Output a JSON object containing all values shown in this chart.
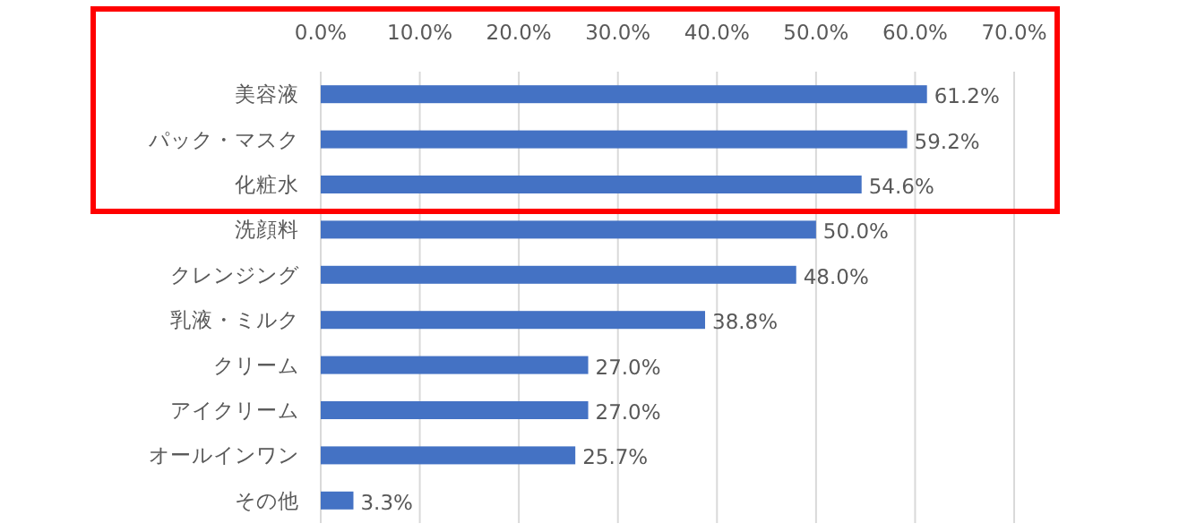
{
  "chart_data": {
    "type": "bar",
    "orientation": "horizontal",
    "color": "#4472c4",
    "categories": [
      "美容液",
      "パック・マスク",
      "化粧水",
      "洗顔料",
      "クレンジング",
      "乳液・ミルク",
      "クリーム",
      "アイクリーム",
      "オールインワン",
      "その他"
    ],
    "values": [
      61.2,
      59.2,
      54.6,
      50.0,
      48.0,
      38.8,
      27.0,
      27.0,
      25.7,
      3.3
    ],
    "value_labels": [
      "61.2%",
      "59.2%",
      "54.6%",
      "50.0%",
      "48.0%",
      "38.8%",
      "27.0%",
      "27.0%",
      "25.7%",
      "3.3%"
    ],
    "xlim": [
      0,
      70
    ],
    "xticks": [
      {
        "value": 0,
        "label": "0.0%"
      },
      {
        "value": 10,
        "label": "10.0%"
      },
      {
        "value": 20,
        "label": "20.0%"
      },
      {
        "value": 30,
        "label": "30.0%"
      },
      {
        "value": 40,
        "label": "40.0%"
      },
      {
        "value": 50,
        "label": "50.0%"
      },
      {
        "value": 60,
        "label": "60.0%"
      },
      {
        "value": 70,
        "label": "70.0%"
      }
    ],
    "grid": "x"
  }
}
